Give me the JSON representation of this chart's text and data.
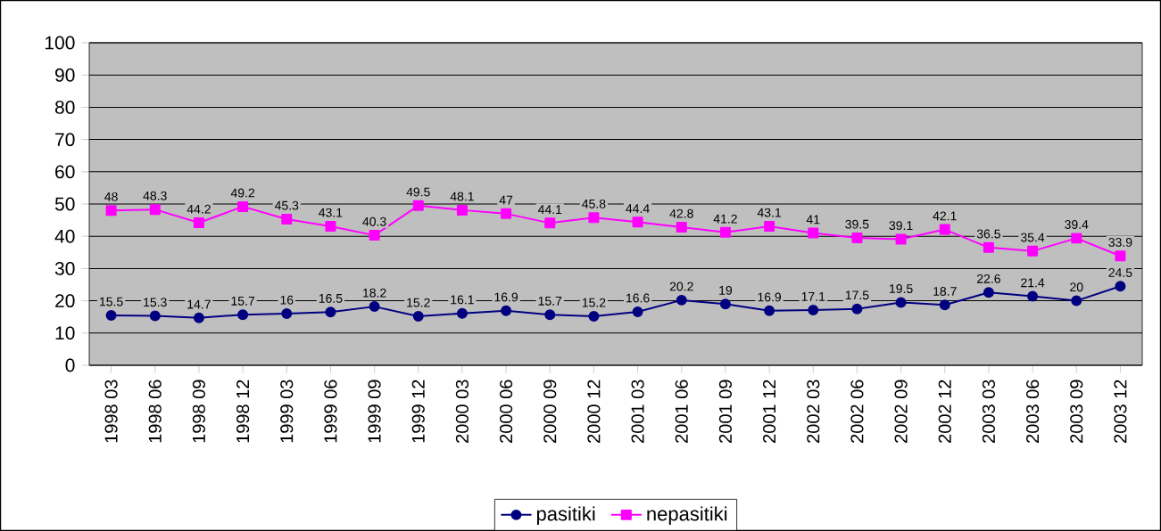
{
  "chart_data": {
    "type": "line",
    "categories": [
      "1998 03",
      "1998 06",
      "1998 09",
      "1998 12",
      "1999 03",
      "1999 06",
      "1999 09",
      "1999 12",
      "2000 03",
      "2000 06",
      "2000 09",
      "2000 12",
      "2001 03",
      "2001 06",
      "2001 09",
      "2001 12",
      "2002 03",
      "2002 06",
      "2002 09",
      "2002 12",
      "2003 03",
      "2003 06",
      "2003 09",
      "2003 12"
    ],
    "series": [
      {
        "name": "pasitiki",
        "color": "#000080",
        "marker": "circle",
        "values": [
          15.5,
          15.3,
          14.7,
          15.7,
          16,
          16.5,
          18.2,
          15.2,
          16.1,
          16.9,
          15.7,
          15.2,
          16.6,
          20.2,
          19,
          16.9,
          17.1,
          17.5,
          19.5,
          18.7,
          22.6,
          21.4,
          20,
          24.5
        ]
      },
      {
        "name": "nepasitiki",
        "color": "#ff00ff",
        "marker": "square",
        "values": [
          48,
          48.3,
          44.2,
          49.2,
          45.3,
          43.1,
          40.3,
          49.5,
          48.1,
          47,
          44.1,
          45.8,
          44.4,
          42.8,
          41.2,
          43.1,
          41,
          39.5,
          39.1,
          42.1,
          36.5,
          35.4,
          39.4,
          33.9
        ]
      }
    ],
    "ylim": [
      0,
      100
    ],
    "yticks": [
      0,
      10,
      20,
      30,
      40,
      50,
      60,
      70,
      80,
      90,
      100
    ],
    "grid": "y",
    "legend": "bottom",
    "data_labels": true,
    "line_style": "solid"
  }
}
